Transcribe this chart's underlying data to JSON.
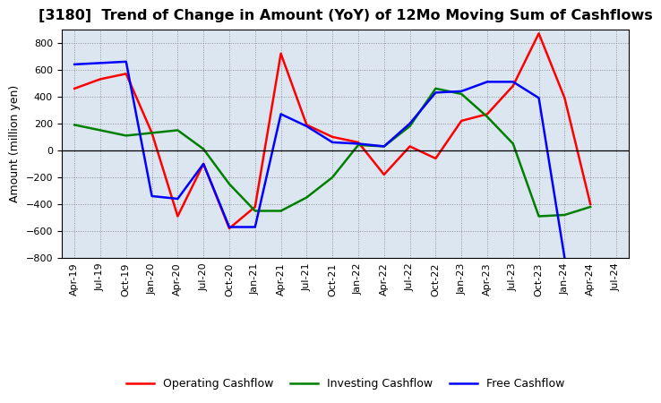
{
  "title": "[3180]  Trend of Change in Amount (YoY) of 12Mo Moving Sum of Cashflows",
  "ylabel": "Amount (million yen)",
  "xlabels": [
    "Apr-19",
    "Jul-19",
    "Oct-19",
    "Jan-20",
    "Apr-20",
    "Jul-20",
    "Oct-20",
    "Jan-21",
    "Apr-21",
    "Jul-21",
    "Oct-21",
    "Jan-22",
    "Apr-22",
    "Jul-22",
    "Oct-22",
    "Jan-23",
    "Apr-23",
    "Jul-23",
    "Oct-23",
    "Jan-24",
    "Apr-24",
    "Jul-24"
  ],
  "operating": [
    460,
    530,
    570,
    130,
    -490,
    -100,
    -580,
    -420,
    720,
    190,
    100,
    60,
    -180,
    30,
    -60,
    220,
    270,
    480,
    870,
    390,
    -400,
    null
  ],
  "investing": [
    190,
    150,
    110,
    130,
    150,
    10,
    -250,
    -450,
    -450,
    -350,
    -200,
    40,
    30,
    180,
    460,
    420,
    250,
    50,
    -490,
    -480,
    -420,
    null
  ],
  "free": [
    640,
    650,
    660,
    -340,
    -360,
    -100,
    -570,
    -570,
    270,
    180,
    60,
    50,
    30,
    200,
    430,
    440,
    510,
    510,
    390,
    -800,
    null,
    null
  ],
  "ylim": [
    -800,
    900
  ],
  "yticks": [
    -800,
    -600,
    -400,
    -200,
    0,
    200,
    400,
    600,
    800
  ],
  "operating_color": "#ff0000",
  "investing_color": "#008000",
  "free_color": "#0000ff",
  "background_color": "#dce6f1",
  "title_fontsize": 11.5,
  "axis_label_fontsize": 9,
  "tick_fontsize": 8,
  "legend_fontsize": 9,
  "linewidth": 1.8
}
